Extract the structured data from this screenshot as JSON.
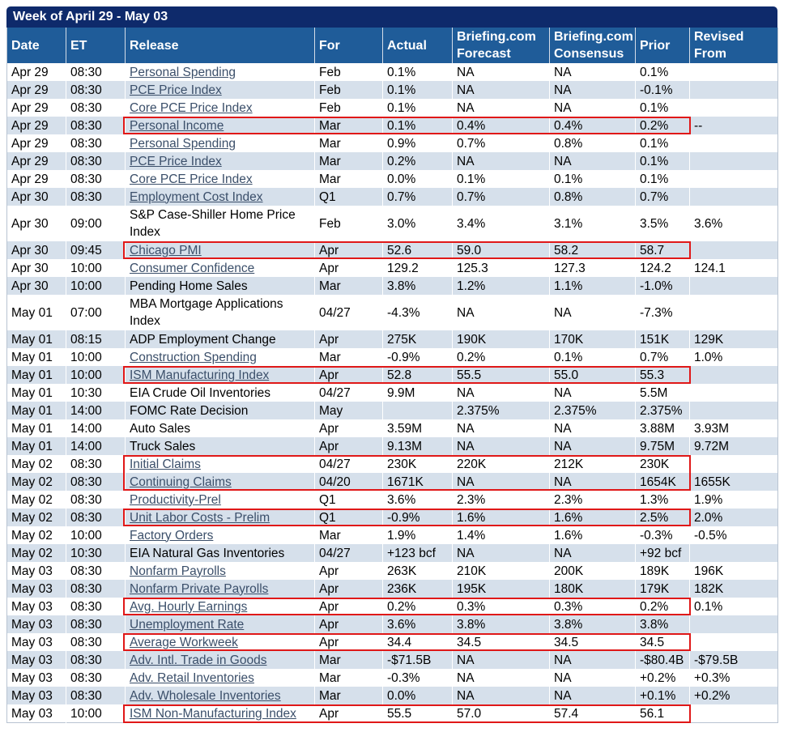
{
  "title": "Week of April 29 - May 03",
  "columns": [
    "Date",
    "ET",
    "Release",
    "For",
    "Actual",
    "Briefing.com Forecast",
    "Briefing.com Consensus",
    "Prior",
    "Revised From"
  ],
  "rows": [
    {
      "date": "Apr 29",
      "et": "08:30",
      "release": "Personal Spending",
      "link": true,
      "for": "Feb",
      "actual": "0.1%",
      "forecast": "NA",
      "consensus": "NA",
      "prior": "0.1%",
      "revised": ""
    },
    {
      "date": "Apr 29",
      "et": "08:30",
      "release": "PCE Price Index",
      "link": true,
      "for": "Feb",
      "actual": "0.1%",
      "forecast": "NA",
      "consensus": "NA",
      "prior": "-0.1%",
      "revised": ""
    },
    {
      "date": "Apr 29",
      "et": "08:30",
      "release": "Core PCE Price Index",
      "link": true,
      "for": "Feb",
      "actual": "0.1%",
      "forecast": "NA",
      "consensus": "NA",
      "prior": "0.1%",
      "revised": ""
    },
    {
      "date": "Apr 29",
      "et": "08:30",
      "release": "Personal Income",
      "link": true,
      "for": "Mar",
      "actual": "0.1%",
      "forecast": "0.4%",
      "consensus": "0.4%",
      "prior": "0.2%",
      "revised": "--",
      "highlight": true
    },
    {
      "date": "Apr 29",
      "et": "08:30",
      "release": "Personal Spending",
      "link": true,
      "for": "Mar",
      "actual": "0.9%",
      "forecast": "0.7%",
      "consensus": "0.8%",
      "prior": "0.1%",
      "revised": ""
    },
    {
      "date": "Apr 29",
      "et": "08:30",
      "release": "PCE Price Index",
      "link": true,
      "for": "Mar",
      "actual": "0.2%",
      "forecast": "NA",
      "consensus": "NA",
      "prior": "0.1%",
      "revised": ""
    },
    {
      "date": "Apr 29",
      "et": "08:30",
      "release": "Core PCE Price Index",
      "link": true,
      "for": "Mar",
      "actual": "0.0%",
      "forecast": "0.1%",
      "consensus": "0.1%",
      "prior": "0.1%",
      "revised": ""
    },
    {
      "date": "Apr 30",
      "et": "08:30",
      "release": "Employment Cost Index",
      "link": true,
      "for": "Q1",
      "actual": "0.7%",
      "forecast": "0.7%",
      "consensus": "0.8%",
      "prior": "0.7%",
      "revised": ""
    },
    {
      "date": "Apr 30",
      "et": "09:00",
      "release": "S&P Case-Shiller Home Price Index",
      "link": false,
      "for": "Feb",
      "actual": "3.0%",
      "forecast": "3.4%",
      "consensus": "3.1%",
      "prior": "3.5%",
      "revised": "3.6%",
      "tall": true
    },
    {
      "date": "Apr 30",
      "et": "09:45",
      "release": "Chicago PMI",
      "link": true,
      "for": "Apr",
      "actual": "52.6",
      "forecast": "59.0",
      "consensus": "58.2",
      "prior": "58.7",
      "revised": "",
      "highlight": true
    },
    {
      "date": "Apr 30",
      "et": "10:00",
      "release": "Consumer Confidence",
      "link": true,
      "for": "Apr",
      "actual": "129.2",
      "forecast": "125.3",
      "consensus": "127.3",
      "prior": "124.2",
      "revised": "124.1"
    },
    {
      "date": "Apr 30",
      "et": "10:00",
      "release": "Pending Home Sales",
      "link": false,
      "for": "Mar",
      "actual": "3.8%",
      "forecast": "1.2%",
      "consensus": "1.1%",
      "prior": "-1.0%",
      "revised": ""
    },
    {
      "date": "May 01",
      "et": "07:00",
      "release": "MBA Mortgage Applications Index",
      "link": false,
      "for": "04/27",
      "actual": "-4.3%",
      "forecast": "NA",
      "consensus": "NA",
      "prior": "-7.3%",
      "revised": "",
      "tall": true
    },
    {
      "date": "May 01",
      "et": "08:15",
      "release": "ADP Employment Change",
      "link": false,
      "for": "Apr",
      "actual": "275K",
      "forecast": "190K",
      "consensus": "170K",
      "prior": "151K",
      "revised": "129K"
    },
    {
      "date": "May 01",
      "et": "10:00",
      "release": "Construction Spending",
      "link": true,
      "for": "Mar",
      "actual": "-0.9%",
      "forecast": "0.2%",
      "consensus": "0.1%",
      "prior": "0.7%",
      "revised": "1.0%"
    },
    {
      "date": "May 01",
      "et": "10:00",
      "release": "ISM Manufacturing Index",
      "link": true,
      "for": "Apr",
      "actual": "52.8",
      "forecast": "55.5",
      "consensus": "55.0",
      "prior": "55.3",
      "revised": "",
      "highlight": true
    },
    {
      "date": "May 01",
      "et": "10:30",
      "release": "EIA Crude Oil Inventories",
      "link": false,
      "for": "04/27",
      "actual": "9.9M",
      "forecast": "NA",
      "consensus": "NA",
      "prior": "5.5M",
      "revised": ""
    },
    {
      "date": "May 01",
      "et": "14:00",
      "release": "FOMC Rate Decision",
      "link": false,
      "for": "May",
      "actual": "",
      "forecast": "2.375%",
      "consensus": "2.375%",
      "prior": "2.375%",
      "revised": ""
    },
    {
      "date": "May 01",
      "et": "14:00",
      "release": "Auto Sales",
      "link": false,
      "for": "Apr",
      "actual": "3.59M",
      "forecast": "NA",
      "consensus": "NA",
      "prior": "3.88M",
      "revised": "3.93M"
    },
    {
      "date": "May 01",
      "et": "14:00",
      "release": "Truck Sales",
      "link": false,
      "for": "Apr",
      "actual": "9.13M",
      "forecast": "NA",
      "consensus": "NA",
      "prior": "9.75M",
      "revised": "9.72M"
    },
    {
      "date": "May 02",
      "et": "08:30",
      "release": "Initial Claims",
      "link": true,
      "for": "04/27",
      "actual": "230K",
      "forecast": "220K",
      "consensus": "212K",
      "prior": "230K",
      "revised": ""
    },
    {
      "date": "May 02",
      "et": "08:30",
      "release": "Continuing Claims",
      "link": true,
      "for": "04/20",
      "actual": "1671K",
      "forecast": "NA",
      "consensus": "NA",
      "prior": "1654K",
      "revised": "1655K"
    },
    {
      "date": "May 02",
      "et": "08:30",
      "release": "Productivity-Prel",
      "link": true,
      "for": "Q1",
      "actual": "3.6%",
      "forecast": "2.3%",
      "consensus": "2.3%",
      "prior": "1.3%",
      "revised": "1.9%"
    },
    {
      "date": "May 02",
      "et": "08:30",
      "release": "Unit Labor Costs - Prelim",
      "link": true,
      "for": "Q1",
      "actual": "-0.9%",
      "forecast": "1.6%",
      "consensus": "1.6%",
      "prior": "2.5%",
      "revised": "2.0%",
      "highlight": true
    },
    {
      "date": "May 02",
      "et": "10:00",
      "release": "Factory Orders",
      "link": true,
      "for": "Mar",
      "actual": "1.9%",
      "forecast": "1.4%",
      "consensus": "1.6%",
      "prior": "-0.3%",
      "revised": "-0.5%"
    },
    {
      "date": "May 02",
      "et": "10:30",
      "release": "EIA Natural Gas Inventories",
      "link": false,
      "for": "04/27",
      "actual": "+123 bcf",
      "forecast": "NA",
      "consensus": "NA",
      "prior": "+92 bcf",
      "revised": ""
    },
    {
      "date": "May 03",
      "et": "08:30",
      "release": "Nonfarm Payrolls",
      "link": true,
      "for": "Apr",
      "actual": "263K",
      "forecast": "210K",
      "consensus": "200K",
      "prior": "189K",
      "revised": "196K"
    },
    {
      "date": "May 03",
      "et": "08:30",
      "release": "Nonfarm Private Payrolls",
      "link": true,
      "for": "Apr",
      "actual": "236K",
      "forecast": "195K",
      "consensus": "180K",
      "prior": "179K",
      "revised": "182K"
    },
    {
      "date": "May 03",
      "et": "08:30",
      "release": "Avg. Hourly Earnings",
      "link": true,
      "for": "Apr",
      "actual": "0.2%",
      "forecast": "0.3%",
      "consensus": "0.3%",
      "prior": "0.2%",
      "revised": "0.1%",
      "highlight": true
    },
    {
      "date": "May 03",
      "et": "08:30",
      "release": "Unemployment Rate",
      "link": true,
      "for": "Apr",
      "actual": "3.6%",
      "forecast": "3.8%",
      "consensus": "3.8%",
      "prior": "3.8%",
      "revised": ""
    },
    {
      "date": "May 03",
      "et": "08:30",
      "release": "Average Workweek",
      "link": true,
      "for": "Apr",
      "actual": "34.4",
      "forecast": "34.5",
      "consensus": "34.5",
      "prior": "34.5",
      "revised": "",
      "highlight": true
    },
    {
      "date": "May 03",
      "et": "08:30",
      "release": "Adv. Intl. Trade in Goods",
      "link": true,
      "for": "Mar",
      "actual": "-$71.5B",
      "forecast": "NA",
      "consensus": "NA",
      "prior": "-$80.4B",
      "revised": "-$79.5B"
    },
    {
      "date": "May 03",
      "et": "08:30",
      "release": "Adv. Retail Inventories",
      "link": true,
      "for": "Mar",
      "actual": "-0.3%",
      "forecast": "NA",
      "consensus": "NA",
      "prior": "+0.2%",
      "revised": "+0.3%"
    },
    {
      "date": "May 03",
      "et": "08:30",
      "release": "Adv. Wholesale Inventories",
      "link": true,
      "for": "Mar",
      "actual": "0.0%",
      "forecast": "NA",
      "consensus": "NA",
      "prior": "+0.1%",
      "revised": "+0.2%"
    },
    {
      "date": "May 03",
      "et": "10:00",
      "release": "ISM Non-Manufacturing Index",
      "link": true,
      "for": "Apr",
      "actual": "55.5",
      "forecast": "57.0",
      "consensus": "57.4",
      "prior": "56.1",
      "revised": "",
      "highlight": true
    }
  ],
  "highlight_groups": [
    {
      "name": "claims-group",
      "rows": [
        "Initial Claims",
        "Continuing Claims"
      ]
    }
  ],
  "colors": {
    "title_bg": "#0e2a6b",
    "header_bg": "#1f5c99",
    "stripe": "#d6e0eb",
    "link": "#3b4f6a",
    "highlight": "#e01818"
  }
}
